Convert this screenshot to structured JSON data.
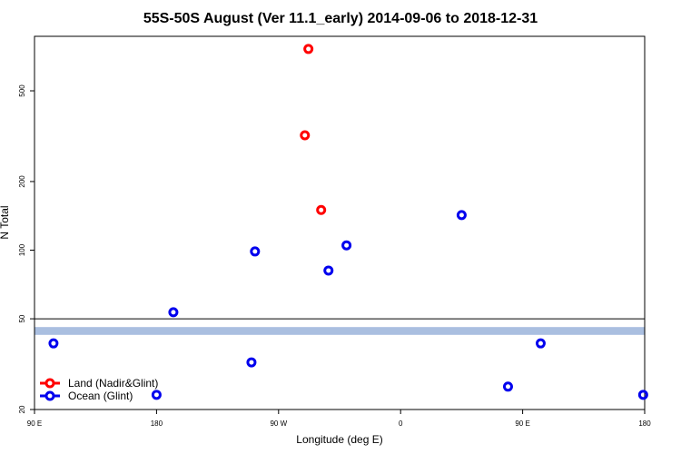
{
  "chart_data": {
    "type": "scatter",
    "title": "55S-50S August (Ver 11.1_early)   2014-09-06 to 2018-12-31",
    "x_label": "Longitude (deg E)",
    "y_label": "N Total",
    "xlim": [
      90,
      540
    ],
    "xticks": [
      {
        "value": 90,
        "label": "90 E"
      },
      {
        "value": 180,
        "label": "180"
      },
      {
        "value": 270,
        "label": "90 W"
      },
      {
        "value": 360,
        "label": "0"
      },
      {
        "value": 450,
        "label": "90 E"
      },
      {
        "value": 540,
        "label": "180"
      }
    ],
    "ylim": [
      20,
      867
    ],
    "yticks": [
      20,
      50,
      100,
      200,
      500
    ],
    "y_log": true,
    "reference_line": 50,
    "band": {
      "ylim": [
        42.5,
        46
      ],
      "color": "#aabfe0"
    },
    "legend": "bottom left",
    "series": [
      {
        "name": "Land (Nadir&Glint)",
        "color": "#ff0000",
        "x": [
          292,
          289.4,
          301.4
        ],
        "values": [
          763,
          319,
          150
        ]
      },
      {
        "name": "Ocean (Glint)",
        "color": "#0000ee",
        "x": [
          104,
          180,
          192.4,
          252.6,
          250,
          306.8,
          320.1,
          405,
          439.2,
          463.3,
          538.9
        ],
        "values": [
          39,
          23.2,
          53.4,
          98.7,
          32.2,
          81.4,
          105,
          142.5,
          25.2,
          39,
          23.2
        ]
      }
    ]
  }
}
